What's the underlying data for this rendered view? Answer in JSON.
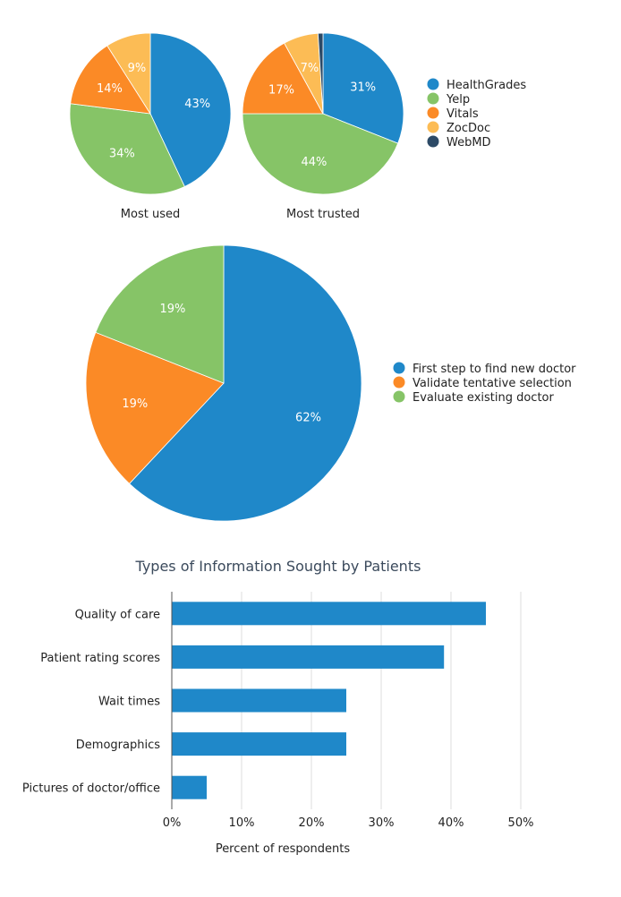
{
  "colors": {
    "blue": "#1f88c9",
    "green": "#86c467",
    "orange": "#fb8a26",
    "yellow": "#fcbc55",
    "navy": "#2c4a66",
    "grid": "#dddddd",
    "axis": "#555555"
  },
  "legend_sites": [
    "HealthGrades",
    "Yelp",
    "Vitals",
    "ZocDoc",
    "WebMD"
  ],
  "legend_purpose": [
    "First step to find new doctor",
    "Validate tentative selection",
    "Evaluate existing doctor"
  ],
  "chart_data": [
    {
      "type": "pie",
      "title": "Most used",
      "slices": [
        {
          "name": "HealthGrades",
          "value": 43,
          "label": "43%"
        },
        {
          "name": "Yelp",
          "value": 34,
          "label": "34%"
        },
        {
          "name": "Vitals",
          "value": 14,
          "label": "14%"
        },
        {
          "name": "ZocDoc",
          "value": 9,
          "label": "9%"
        }
      ]
    },
    {
      "type": "pie",
      "title": "Most trusted",
      "slices": [
        {
          "name": "HealthGrades",
          "value": 31,
          "label": "31%"
        },
        {
          "name": "Yelp",
          "value": 44,
          "label": "44%"
        },
        {
          "name": "Vitals",
          "value": 17,
          "label": "17%"
        },
        {
          "name": "ZocDoc",
          "value": 7,
          "label": "7%"
        },
        {
          "name": "WebMD",
          "value": 1,
          "label": ""
        }
      ]
    },
    {
      "type": "pie",
      "title": "",
      "slices": [
        {
          "name": "First step to find new doctor",
          "value": 62,
          "label": "62%"
        },
        {
          "name": "Validate tentative selection",
          "value": 19,
          "label": "19%"
        },
        {
          "name": "Evaluate existing doctor",
          "value": 19,
          "label": "19%"
        }
      ]
    },
    {
      "type": "bar",
      "orientation": "horizontal",
      "title": "Types of Information Sought by Patients",
      "categories": [
        "Quality of care",
        "Patient rating scores",
        "Wait times",
        "Demographics",
        "Pictures of doctor/office"
      ],
      "values": [
        45,
        39,
        25,
        25,
        5
      ],
      "xlabel": "Percent of respondents",
      "xlim": [
        0,
        50
      ],
      "xticks": [
        "0%",
        "10%",
        "20%",
        "30%",
        "40%",
        "50%"
      ],
      "grid": true
    }
  ]
}
